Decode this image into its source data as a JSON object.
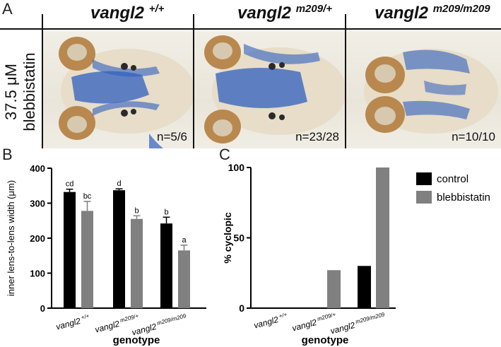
{
  "panel_a": {
    "letter": "A",
    "row_label_line1": "37.5 μM",
    "row_label_line2": "blebbistatin",
    "columns": [
      {
        "genotype": "vangl2",
        "sup": "+/+",
        "n": "n=5/6"
      },
      {
        "genotype": "vangl2",
        "sup": "m209/+",
        "n": "n=23/28"
      },
      {
        "genotype": "vangl2",
        "sup": "m209/m209",
        "n": "n=10/10"
      }
    ]
  },
  "panel_b": {
    "letter": "B"
  },
  "panel_c": {
    "letter": "C"
  },
  "colors": {
    "control": "#000000",
    "blebbistatin": "#808080",
    "stain_blue": "#2f5fc0",
    "eye_brown": "#b9884f"
  },
  "chart_data": [
    {
      "type": "bar",
      "panel": "B",
      "title": "",
      "xlabel": "genotype",
      "ylabel": "inner lens-to-lens width (μm)",
      "ylim": [
        0,
        400
      ],
      "yticks": [
        0,
        100,
        200,
        300,
        400
      ],
      "categories": [
        {
          "name": "vangl2",
          "sup": "+/+"
        },
        {
          "name": "vangl2",
          "sup": "m209/+"
        },
        {
          "name": "vangl2",
          "sup": "m209/m209"
        }
      ],
      "series": [
        {
          "name": "control",
          "color": "#000000",
          "values": [
            332,
            337,
            242
          ],
          "errors": [
            8,
            4,
            18
          ],
          "labels": [
            "cd",
            "d",
            "b"
          ]
        },
        {
          "name": "blebbistatin",
          "color": "#808080",
          "values": [
            278,
            255,
            165
          ],
          "errors": [
            27,
            9,
            15
          ],
          "labels": [
            "bc",
            "b",
            "a"
          ]
        }
      ],
      "grid": false
    },
    {
      "type": "bar",
      "panel": "C",
      "title": "",
      "xlabel": "genotype",
      "ylabel": "% cyclopic",
      "ylim": [
        0,
        100
      ],
      "yticks": [
        0,
        50,
        100
      ],
      "categories": [
        {
          "name": "vangl2",
          "sup": "+/+"
        },
        {
          "name": "vangl2",
          "sup": "m209/+"
        },
        {
          "name": "vangl2",
          "sup": "m209/m209"
        }
      ],
      "series": [
        {
          "name": "control",
          "color": "#000000",
          "values": [
            0,
            0,
            30
          ]
        },
        {
          "name": "blebbistatin",
          "color": "#808080",
          "values": [
            0,
            27,
            100
          ]
        }
      ],
      "legend": "top-right",
      "grid": false
    }
  ]
}
